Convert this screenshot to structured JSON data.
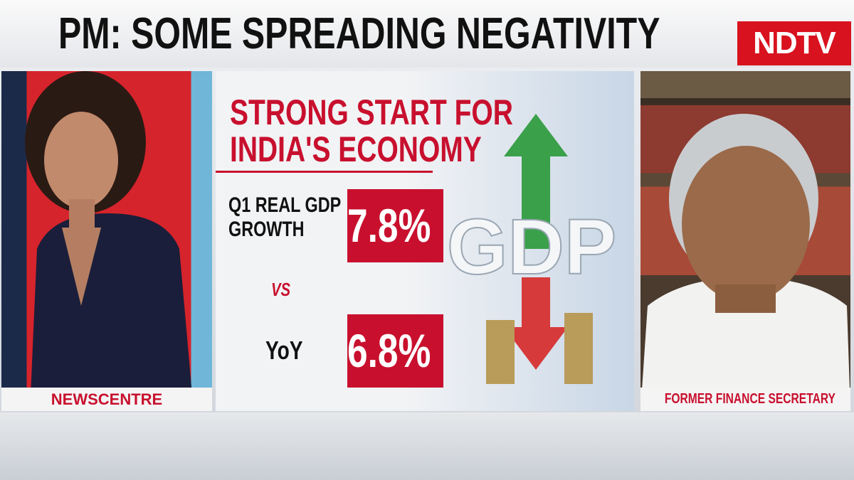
{
  "header": {
    "title": "PM: SOME SPREADING NEGATIVITY",
    "logo": "NDTV"
  },
  "left_panel": {
    "caption": "NEWSCENTRE"
  },
  "graphic": {
    "headline": [
      "STRONG START FOR",
      "INDIA'S ECONOMY"
    ],
    "rows": [
      {
        "label": "Q1 REAL GDP GROWTH",
        "value": "7.8%"
      },
      {
        "label": "YoY",
        "value": "6.8%"
      }
    ],
    "versus": "VS",
    "image_text": "GDP"
  },
  "right_panel": {
    "caption": "FORMER FINANCE SECRETARY"
  }
}
